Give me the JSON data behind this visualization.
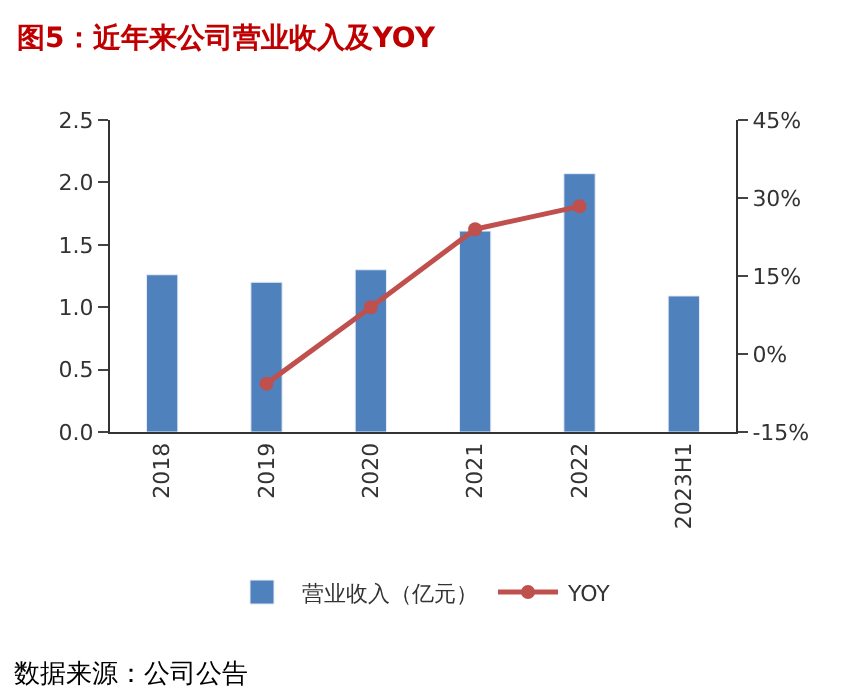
{
  "chart_data": {
    "type": "bar",
    "title": "图5：近年来公司营业收入及YOY",
    "categories": [
      "2018",
      "2019",
      "2020",
      "2021",
      "2022",
      "2023H1"
    ],
    "series": [
      {
        "name": "营业收入（亿元）",
        "color": "#4f81bd",
        "values": [
          1.26,
          1.2,
          1.3,
          1.61,
          2.07,
          1.09
        ]
      },
      {
        "name": "YOY",
        "type": "line",
        "axis": "y2",
        "color": "#c0504d",
        "marker": "circle",
        "values": [
          null,
          -5.7,
          9.0,
          24.0,
          28.4,
          null
        ]
      }
    ],
    "ylim": [
      0,
      2.5
    ],
    "yticks": [
      {
        "value": 0,
        "label": "0.0"
      },
      {
        "value": 0.5,
        "label": "0.5"
      },
      {
        "value": 1,
        "label": "1.0"
      },
      {
        "value": 1.5,
        "label": "1.5"
      },
      {
        "value": 2,
        "label": "2.0"
      },
      {
        "value": 2.5,
        "label": "2.5"
      }
    ],
    "y2lim": [
      -15,
      45
    ],
    "y2ticks": [
      {
        "value": -15,
        "label": "-15%"
      },
      {
        "value": 0,
        "label": "0%"
      },
      {
        "value": 15,
        "label": "15%"
      },
      {
        "value": 30,
        "label": "30%"
      },
      {
        "value": 45,
        "label": "45%"
      }
    ],
    "legend": "bottom",
    "annotations": [
      "数据来源：公司公告"
    ]
  }
}
